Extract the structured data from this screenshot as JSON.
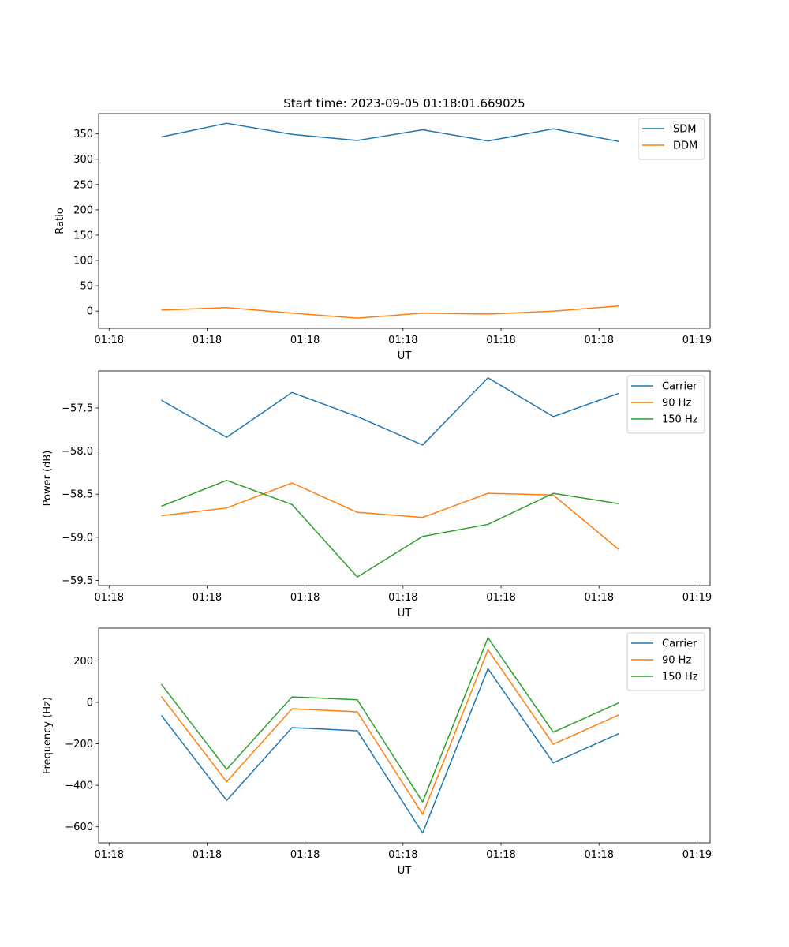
{
  "figure_title": "Start time: 2023-09-05 01:18:01.669025",
  "chart_data": [
    {
      "type": "line",
      "name": "ratio",
      "title": "Start time: 2023-09-05 01:18:01.669025",
      "xlabel": "UT",
      "ylabel": "Ratio",
      "x": [
        1,
        2,
        3,
        4,
        5,
        6,
        7,
        8
      ],
      "xlim": [
        0.04,
        9.4
      ],
      "x_ticks": [
        0.2,
        1.7,
        3.2,
        4.7,
        6.2,
        7.7,
        9.2
      ],
      "x_tick_labels": [
        "01:18",
        "01:18",
        "01:18",
        "01:18",
        "01:18",
        "01:18",
        "01:19"
      ],
      "ylim": [
        -34,
        390
      ],
      "y_ticks": [
        0,
        50,
        100,
        150,
        200,
        250,
        300,
        350
      ],
      "y_tick_labels": [
        "0",
        "50",
        "100",
        "150",
        "200",
        "250",
        "300",
        "350"
      ],
      "legend_position": "top-right",
      "series": [
        {
          "name": "SDM",
          "color": "#1f77b4",
          "values": [
            344,
            371,
            349,
            337,
            358,
            336,
            360,
            335
          ]
        },
        {
          "name": "DDM",
          "color": "#ff7f0e",
          "values": [
            2,
            7,
            -4,
            -14,
            -4,
            -6,
            0,
            10
          ]
        }
      ]
    },
    {
      "type": "line",
      "name": "power",
      "title": "",
      "xlabel": "UT",
      "ylabel": "Power (dB)",
      "x": [
        1,
        2,
        3,
        4,
        5,
        6,
        7,
        8
      ],
      "xlim": [
        0.04,
        9.4
      ],
      "x_ticks": [
        0.2,
        1.7,
        3.2,
        4.7,
        6.2,
        7.7,
        9.2
      ],
      "x_tick_labels": [
        "01:18",
        "01:18",
        "01:18",
        "01:18",
        "01:18",
        "01:18",
        "01:19"
      ],
      "ylim": [
        -59.56,
        -57.07
      ],
      "y_ticks": [
        -59.5,
        -59.0,
        -58.5,
        -58.0,
        -57.5
      ],
      "y_tick_labels": [
        "−59.5",
        "−59.0",
        "−58.5",
        "−58.0",
        "−57.5"
      ],
      "legend_position": "top-right",
      "series": [
        {
          "name": "Carrier",
          "color": "#1f77b4",
          "values": [
            -57.41,
            -57.84,
            -57.32,
            -57.6,
            -57.93,
            -57.15,
            -57.6,
            -57.33
          ]
        },
        {
          "name": "90 Hz",
          "color": "#ff7f0e",
          "values": [
            -58.75,
            -58.66,
            -58.37,
            -58.71,
            -58.77,
            -58.49,
            -58.51,
            -59.14
          ]
        },
        {
          "name": "150 Hz",
          "color": "#2ca02c",
          "values": [
            -58.64,
            -58.34,
            -58.62,
            -59.46,
            -58.99,
            -58.85,
            -58.49,
            -58.61
          ]
        }
      ]
    },
    {
      "type": "line",
      "name": "frequency",
      "title": "",
      "xlabel": "UT",
      "ylabel": "Frequency (Hz)",
      "x": [
        1,
        2,
        3,
        4,
        5,
        6,
        7,
        8
      ],
      "xlim": [
        0.04,
        9.4
      ],
      "x_ticks": [
        0.2,
        1.7,
        3.2,
        4.7,
        6.2,
        7.7,
        9.2
      ],
      "x_tick_labels": [
        "01:18",
        "01:18",
        "01:18",
        "01:18",
        "01:18",
        "01:18",
        "01:19"
      ],
      "ylim": [
        -677,
        357
      ],
      "y_ticks": [
        -600,
        -400,
        -200,
        0,
        200
      ],
      "y_tick_labels": [
        "−600",
        "−400",
        "−200",
        "0",
        "200"
      ],
      "legend_position": "top-right",
      "series": [
        {
          "name": "Carrier",
          "color": "#1f77b4",
          "values": [
            -63,
            -473,
            -122,
            -137,
            -630,
            162,
            -292,
            -151
          ]
        },
        {
          "name": "90 Hz",
          "color": "#ff7f0e",
          "values": [
            28,
            -383,
            -31,
            -46,
            -540,
            253,
            -202,
            -61
          ]
        },
        {
          "name": "150 Hz",
          "color": "#2ca02c",
          "values": [
            87,
            -323,
            26,
            12,
            -480,
            311,
            -144,
            -3
          ]
        }
      ]
    }
  ]
}
